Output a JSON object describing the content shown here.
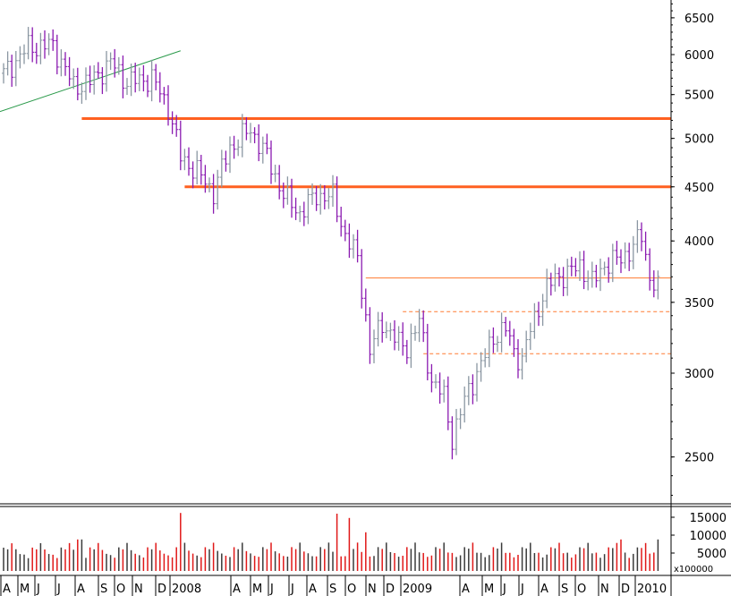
{
  "chart_data": {
    "type": "ohlc",
    "price": {
      "scale": "log",
      "ylim": [
        2150,
        7000
      ],
      "yticks": [
        2500,
        3000,
        3500,
        4000,
        4500,
        5000,
        5500,
        6000,
        6500
      ],
      "ytick_labels": [
        "2500",
        "3000",
        "3500",
        "4000",
        "4500",
        "5000",
        "5500",
        "6000",
        "6500"
      ]
    },
    "volume": {
      "unit_label": "x100000",
      "ylim": [
        0,
        18000
      ],
      "yticks": [
        5000,
        10000,
        15000
      ],
      "ytick_labels": [
        "5000",
        "10000",
        "15000"
      ]
    },
    "x_axis": {
      "labels": [
        "A",
        "M",
        "J",
        "J",
        "A",
        "S",
        "O",
        "N",
        "D",
        "2008",
        "A",
        "M",
        "J",
        "J",
        "A",
        "S",
        "O",
        "N",
        "D",
        "2009",
        "A",
        "M",
        "J",
        "J",
        "A",
        "S",
        "O",
        "N",
        "D",
        "2010"
      ]
    },
    "anchor_closes": [
      [
        0,
        5750
      ],
      [
        6,
        6100
      ],
      [
        12,
        6120
      ],
      [
        17,
        5600
      ],
      [
        21,
        5650
      ],
      [
        26,
        5900
      ],
      [
        30,
        5650
      ],
      [
        36,
        5700
      ],
      [
        40,
        5350
      ],
      [
        43,
        4800
      ],
      [
        47,
        4650
      ],
      [
        51,
        4450
      ],
      [
        55,
        4900
      ],
      [
        60,
        5100
      ],
      [
        64,
        4800
      ],
      [
        68,
        4420
      ],
      [
        72,
        4250
      ],
      [
        76,
        4420
      ],
      [
        80,
        4400
      ],
      [
        83,
        4050
      ],
      [
        86,
        3850
      ],
      [
        89,
        3150
      ],
      [
        92,
        3350
      ],
      [
        96,
        3200
      ],
      [
        98,
        3180
      ],
      [
        101,
        3350
      ],
      [
        104,
        2950
      ],
      [
        107,
        2850
      ],
      [
        109,
        2600
      ],
      [
        111,
        2750
      ],
      [
        113,
        2900
      ],
      [
        116,
        3050
      ],
      [
        119,
        3250
      ],
      [
        122,
        3300
      ],
      [
        124,
        3150
      ],
      [
        126,
        3080
      ],
      [
        128,
        3300
      ],
      [
        131,
        3550
      ],
      [
        134,
        3700
      ],
      [
        137,
        3720
      ],
      [
        140,
        3800
      ],
      [
        143,
        3650
      ],
      [
        146,
        3800
      ],
      [
        150,
        3850
      ],
      [
        153,
        3950
      ],
      [
        155,
        4050
      ],
      [
        157,
        3700
      ],
      [
        159,
        3600
      ]
    ],
    "volume_heights": [
      8800,
      5400,
      11800,
      8600,
      16200,
      9600,
      13800,
      12400
    ],
    "trendline": {
      "from": [
        0,
        5300
      ],
      "to": [
        43,
        6050
      ]
    },
    "levels": [
      {
        "price": 5220,
        "from_bar": 19,
        "style": "thick",
        "color": "#ff6020"
      },
      {
        "price": 4500,
        "from_bar": 44,
        "style": "thick",
        "color": "#ff6020"
      },
      {
        "price": 3690,
        "from_bar": 88,
        "style": "solid",
        "color": "#ff7a30"
      },
      {
        "price": 3430,
        "from_bar": 97,
        "style": "dashed",
        "color": "#ff7a30"
      },
      {
        "price": 3130,
        "from_bar": 102,
        "style": "dashed",
        "color": "#ff7a30"
      }
    ],
    "colors": {
      "up": "#8a96a2",
      "down": "#8a1ab0",
      "vol_up": "#3a3a3a",
      "vol_down": "#e01818",
      "trend": "#2a9a4a"
    }
  }
}
